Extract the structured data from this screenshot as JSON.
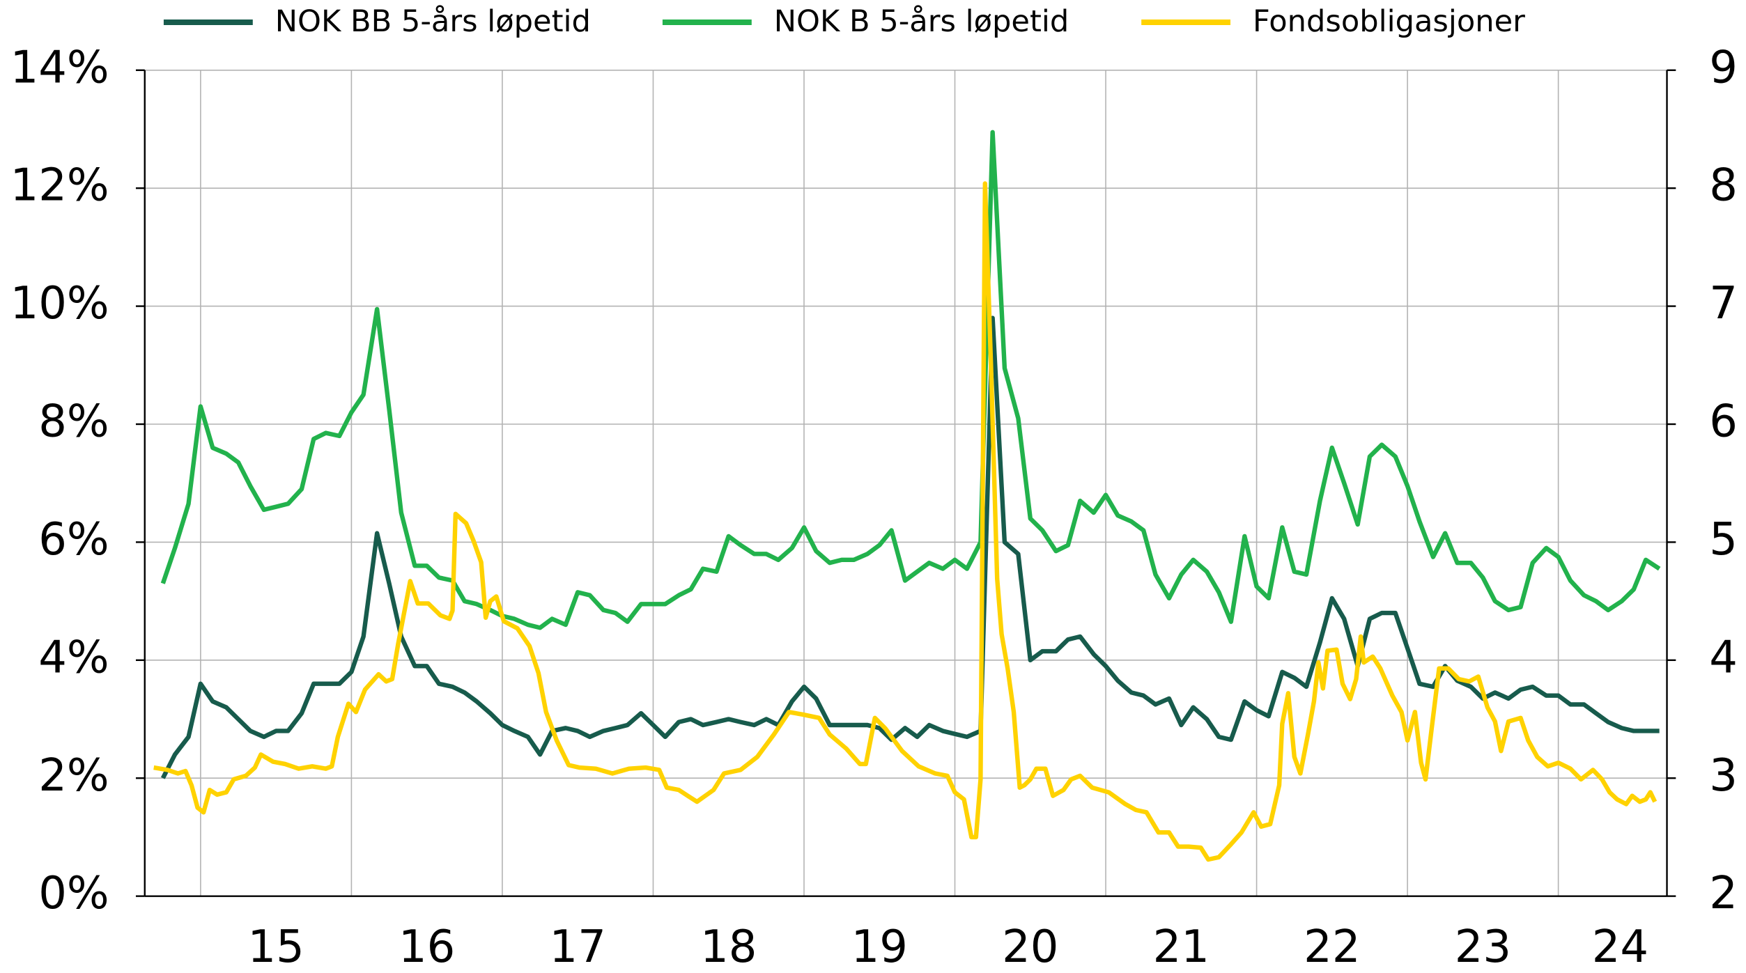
{
  "chart_data": {
    "type": "line",
    "legend": "top",
    "grid": true,
    "x": [
      2014.75,
      2014.83,
      2014.92,
      2015.0,
      2015.08,
      2015.17,
      2015.25,
      2015.33,
      2015.42,
      2015.5,
      2015.58,
      2015.67,
      2015.75,
      2015.83,
      2015.92,
      2016.0,
      2016.08,
      2016.17,
      2016.25,
      2016.33,
      2016.42,
      2016.5,
      2016.58,
      2016.67,
      2016.75,
      2016.83,
      2016.92,
      2017.0,
      2017.08,
      2017.17,
      2017.25,
      2017.33,
      2017.42,
      2017.5,
      2017.58,
      2017.67,
      2017.75,
      2017.83,
      2017.92,
      2018.0,
      2018.08,
      2018.17,
      2018.25,
      2018.33,
      2018.42,
      2018.5,
      2018.58,
      2018.67,
      2018.75,
      2018.83,
      2018.92,
      2019.0,
      2019.08,
      2019.17,
      2019.25,
      2019.33,
      2019.42,
      2019.5,
      2019.58,
      2019.67,
      2019.75,
      2019.83,
      2019.92,
      2020.0,
      2020.08,
      2020.17,
      2020.25,
      2020.33,
      2020.42,
      2020.5,
      2020.58,
      2020.67,
      2020.75,
      2020.83,
      2020.92,
      2021.0,
      2021.08,
      2021.17,
      2021.25,
      2021.33,
      2021.42,
      2021.5,
      2021.58,
      2021.67,
      2021.75,
      2021.83,
      2021.92,
      2022.0,
      2022.08,
      2022.17,
      2022.25,
      2022.33,
      2022.42,
      2022.5,
      2022.58,
      2022.67,
      2022.75,
      2022.83,
      2022.92,
      2023.0,
      2023.08,
      2023.17,
      2023.25,
      2023.33,
      2023.42,
      2023.5,
      2023.58,
      2023.67,
      2023.75,
      2023.83,
      2023.92,
      2024.0,
      2024.08,
      2024.17,
      2024.25,
      2024.33,
      2024.42,
      2024.5,
      2024.58,
      2024.67
    ],
    "xlim": [
      2014.63,
      2024.72
    ],
    "xticks": [
      {
        "value": 2015.5,
        "label": "15"
      },
      {
        "value": 2016.5,
        "label": "16"
      },
      {
        "value": 2017.5,
        "label": "17"
      },
      {
        "value": 2018.5,
        "label": "18"
      },
      {
        "value": 2019.5,
        "label": "19"
      },
      {
        "value": 2020.5,
        "label": "20"
      },
      {
        "value": 2021.5,
        "label": "21"
      },
      {
        "value": 2022.5,
        "label": "22"
      },
      {
        "value": 2023.5,
        "label": "23"
      },
      {
        "value": 2024.41,
        "label": "24"
      }
    ],
    "xgrid": [
      2015,
      2016,
      2017,
      2018,
      2019,
      2020,
      2021,
      2022,
      2023,
      2024
    ],
    "ylim": [
      0,
      14
    ],
    "yticks": [
      {
        "value": 0,
        "label": "0%"
      },
      {
        "value": 2,
        "label": "2%"
      },
      {
        "value": 4,
        "label": "4%"
      },
      {
        "value": 6,
        "label": "6%"
      },
      {
        "value": 8,
        "label": "8%"
      },
      {
        "value": 10,
        "label": "10%"
      },
      {
        "value": 12,
        "label": "12%"
      },
      {
        "value": 14,
        "label": "14%"
      }
    ],
    "y2lim": [
      2,
      9
    ],
    "y2ticks": [
      2,
      3,
      4,
      5,
      6,
      7,
      8,
      9
    ],
    "series": [
      {
        "name": "NOK BB 5-års løpetid",
        "color": "#175b4c",
        "values": [
          2.0,
          2.4,
          2.7,
          3.6,
          3.3,
          3.2,
          3.0,
          2.8,
          2.7,
          2.8,
          2.8,
          3.1,
          3.6,
          3.6,
          3.6,
          3.8,
          4.4,
          6.15,
          5.3,
          4.4,
          3.9,
          3.9,
          3.6,
          3.55,
          3.45,
          3.3,
          3.1,
          2.9,
          2.8,
          2.7,
          2.4,
          2.8,
          2.85,
          2.8,
          2.7,
          2.8,
          2.85,
          2.9,
          3.1,
          2.9,
          2.7,
          2.95,
          3.0,
          2.9,
          2.95,
          3.0,
          2.95,
          2.9,
          3.0,
          2.9,
          3.3,
          3.55,
          3.35,
          2.9,
          2.9,
          2.9,
          2.9,
          2.85,
          2.65,
          2.85,
          2.7,
          2.9,
          2.8,
          2.75,
          2.7,
          2.8,
          9.8,
          6.0,
          5.8,
          4.0,
          4.15,
          4.15,
          4.35,
          4.4,
          4.1,
          3.9,
          3.65,
          3.45,
          3.4,
          3.25,
          3.35,
          2.9,
          3.2,
          3.0,
          2.7,
          2.65,
          3.3,
          3.15,
          3.05,
          3.8,
          3.7,
          3.55,
          4.3,
          5.05,
          4.7,
          3.9,
          4.7,
          4.8,
          4.8,
          4.2,
          3.6,
          3.55,
          3.9,
          3.65,
          3.55,
          3.35,
          3.45,
          3.35,
          3.5,
          3.55,
          3.4,
          3.4,
          3.25,
          3.25,
          3.1,
          2.95,
          2.85,
          2.8,
          2.8,
          2.8
        ]
      },
      {
        "name": "NOK B 5-års løpetid",
        "color": "#22b24c",
        "values": [
          5.3,
          5.9,
          6.65,
          8.3,
          7.6,
          7.5,
          7.35,
          6.95,
          6.55,
          6.6,
          6.65,
          6.9,
          7.75,
          7.85,
          7.8,
          8.2,
          8.5,
          9.95,
          8.25,
          6.5,
          5.6,
          5.6,
          5.4,
          5.35,
          5.0,
          4.95,
          4.85,
          4.75,
          4.7,
          4.6,
          4.55,
          4.7,
          4.6,
          5.15,
          5.1,
          4.85,
          4.8,
          4.65,
          4.95,
          4.95,
          4.95,
          5.1,
          5.2,
          5.55,
          5.5,
          6.1,
          5.95,
          5.8,
          5.8,
          5.7,
          5.9,
          6.25,
          5.85,
          5.65,
          5.7,
          5.7,
          5.8,
          5.95,
          6.2,
          5.35,
          5.5,
          5.65,
          5.55,
          5.7,
          5.55,
          6.0,
          12.95,
          8.95,
          8.1,
          6.4,
          6.2,
          5.85,
          5.95,
          6.7,
          6.5,
          6.8,
          6.45,
          6.35,
          6.2,
          5.45,
          5.05,
          5.45,
          5.7,
          5.5,
          5.15,
          4.65,
          6.1,
          5.25,
          5.05,
          6.25,
          5.5,
          5.45,
          6.7,
          7.6,
          7.0,
          6.3,
          7.45,
          7.65,
          7.45,
          6.95,
          6.35,
          5.75,
          6.15,
          5.65,
          5.65,
          5.4,
          5.0,
          4.85,
          4.9,
          5.65,
          5.9,
          5.75,
          5.35,
          5.1,
          5.0,
          4.85,
          5.0,
          5.2,
          5.7,
          5.55
        ]
      },
      {
        "name": "Fondsobligasjoner",
        "color": "#ffd200",
        "axis": "y2",
        "x": [
          2014.69,
          2014.78,
          2014.85,
          2014.9,
          2014.94,
          2014.98,
          2015.02,
          2015.06,
          2015.11,
          2015.17,
          2015.22,
          2015.3,
          2015.36,
          2015.4,
          2015.48,
          2015.56,
          2015.65,
          2015.74,
          2015.83,
          2015.87,
          2015.91,
          2015.98,
          2016.03,
          2016.09,
          2016.18,
          2016.23,
          2016.27,
          2016.31,
          2016.39,
          2016.44,
          2016.51,
          2016.59,
          2016.65,
          2016.67,
          2016.69,
          2016.76,
          2016.81,
          2016.86,
          2016.89,
          2016.92,
          2016.96,
          2017.01,
          2017.1,
          2017.18,
          2017.24,
          2017.29,
          2017.36,
          2017.44,
          2017.51,
          2017.62,
          2017.73,
          2017.84,
          2017.95,
          2018.04,
          2018.09,
          2018.17,
          2018.23,
          2018.29,
          2018.4,
          2018.47,
          2018.58,
          2018.69,
          2018.8,
          2018.9,
          2018.99,
          2019.1,
          2019.17,
          2019.28,
          2019.37,
          2019.41,
          2019.47,
          2019.54,
          2019.65,
          2019.76,
          2019.87,
          2019.95,
          2020.0,
          2020.06,
          2020.11,
          2020.14,
          2020.17,
          2020.2,
          2020.24,
          2020.28,
          2020.31,
          2020.35,
          2020.39,
          2020.43,
          2020.46,
          2020.5,
          2020.54,
          2020.6,
          2020.65,
          2020.72,
          2020.77,
          2020.83,
          2020.91,
          2021.02,
          2021.13,
          2021.2,
          2021.27,
          2021.35,
          2021.42,
          2021.48,
          2021.55,
          2021.63,
          2021.68,
          2021.75,
          2021.83,
          2021.9,
          2021.98,
          2022.03,
          2022.09,
          2022.15,
          2022.17,
          2022.21,
          2022.25,
          2022.29,
          2022.34,
          2022.38,
          2022.41,
          2022.44,
          2022.47,
          2022.53,
          2022.57,
          2022.62,
          2022.66,
          2022.69,
          2022.71,
          2022.77,
          2022.82,
          2022.9,
          2022.96,
          2023.0,
          2023.05,
          2023.09,
          2023.12,
          2023.16,
          2023.21,
          2023.27,
          2023.34,
          2023.41,
          2023.47,
          2023.53,
          2023.58,
          2023.62,
          2023.67,
          2023.75,
          2023.8,
          2023.86,
          2023.93,
          2024.0,
          2024.08,
          2024.15,
          2024.23,
          2024.29,
          2024.34,
          2024.39,
          2024.45,
          2024.49,
          2024.54,
          2024.58,
          2024.61,
          2024.64
        ],
        "values": [
          3.09,
          3.07,
          3.04,
          3.06,
          2.94,
          2.75,
          2.71,
          2.9,
          2.86,
          2.88,
          2.99,
          3.02,
          3.09,
          3.2,
          3.14,
          3.12,
          3.08,
          3.1,
          3.08,
          3.1,
          3.35,
          3.63,
          3.56,
          3.75,
          3.88,
          3.82,
          3.84,
          4.14,
          4.67,
          4.48,
          4.48,
          4.38,
          4.35,
          4.42,
          5.24,
          5.16,
          5.01,
          4.83,
          4.36,
          4.5,
          4.54,
          4.33,
          4.27,
          4.12,
          3.89,
          3.56,
          3.32,
          3.11,
          3.09,
          3.08,
          3.04,
          3.08,
          3.09,
          3.07,
          2.92,
          2.9,
          2.85,
          2.8,
          2.9,
          3.04,
          3.07,
          3.18,
          3.37,
          3.56,
          3.54,
          3.51,
          3.37,
          3.25,
          3.12,
          3.12,
          3.51,
          3.42,
          3.23,
          3.1,
          3.04,
          3.02,
          2.88,
          2.82,
          2.5,
          2.5,
          2.99,
          8.04,
          6.48,
          4.69,
          4.22,
          3.93,
          3.56,
          2.92,
          2.94,
          2.99,
          3.08,
          3.08,
          2.85,
          2.9,
          2.99,
          3.02,
          2.92,
          2.88,
          2.78,
          2.73,
          2.71,
          2.54,
          2.54,
          2.42,
          2.42,
          2.41,
          2.31,
          2.33,
          2.44,
          2.54,
          2.71,
          2.59,
          2.61,
          2.94,
          3.46,
          3.72,
          3.18,
          3.04,
          3.37,
          3.65,
          3.98,
          3.76,
          4.08,
          4.09,
          3.8,
          3.67,
          3.84,
          4.2,
          3.98,
          4.03,
          3.93,
          3.7,
          3.56,
          3.32,
          3.56,
          3.13,
          2.99,
          3.42,
          3.93,
          3.93,
          3.84,
          3.82,
          3.86,
          3.6,
          3.48,
          3.23,
          3.48,
          3.51,
          3.32,
          3.18,
          3.1,
          3.13,
          3.08,
          2.99,
          3.07,
          2.99,
          2.88,
          2.82,
          2.78,
          2.85,
          2.8,
          2.82,
          2.88,
          2.8
        ]
      }
    ]
  }
}
